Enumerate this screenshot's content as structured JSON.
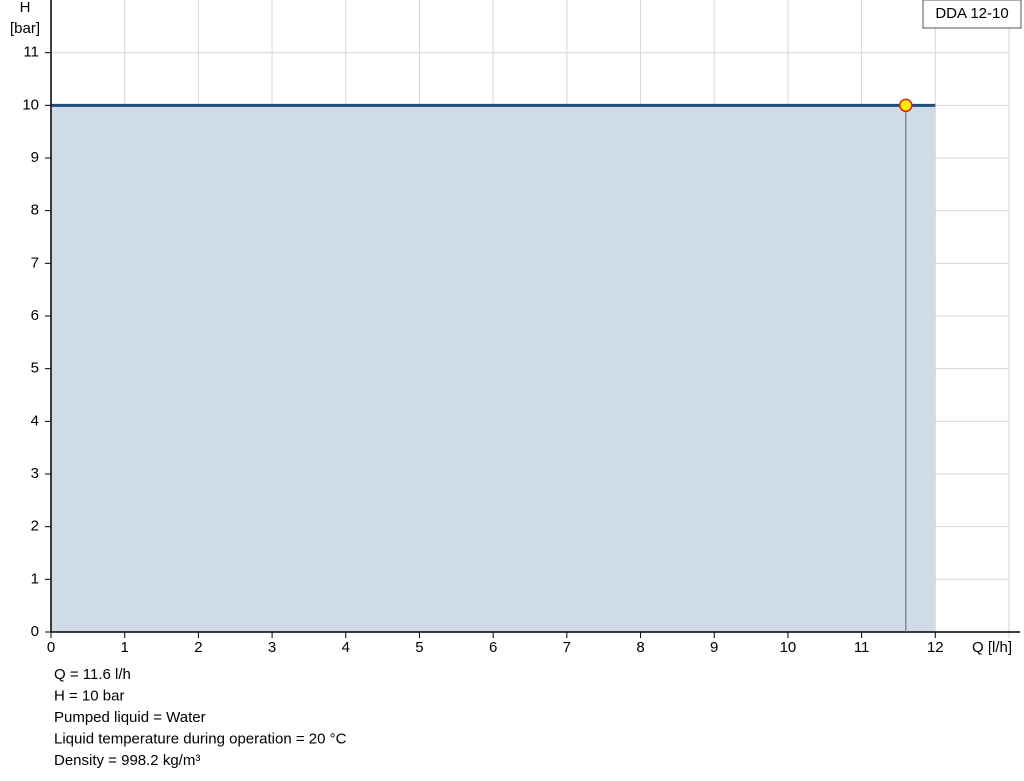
{
  "chart_data": {
    "type": "line",
    "x_label": "Q [l/h]",
    "y_label": "H",
    "y_unit": "[bar]",
    "x": [
      0,
      12
    ],
    "series": [
      {
        "name": "DDA 12-10",
        "color": "#1f4e79",
        "fill": "#cfdbe6",
        "values": [
          10,
          10
        ]
      }
    ],
    "operating_point": {
      "x": 11.6,
      "y": 10
    },
    "xlim": [
      0,
      13
    ],
    "ylim": [
      0,
      12
    ],
    "xticks": [
      0,
      1,
      2,
      3,
      4,
      5,
      6,
      7,
      8,
      9,
      10,
      11,
      12
    ],
    "yticks": [
      0,
      1,
      2,
      3,
      4,
      5,
      6,
      7,
      8,
      9,
      10,
      11
    ],
    "grid": true,
    "legend": "top-right",
    "info": [
      "Q = 11.6 l/h",
      "H = 10 bar",
      "Pumped liquid = Water",
      "Liquid temperature during operation = 20 °C",
      "Density = 998.2 kg/m³"
    ]
  }
}
